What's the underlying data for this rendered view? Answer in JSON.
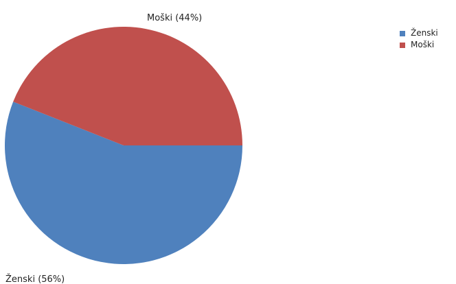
{
  "chart_data": {
    "type": "pie",
    "slices": [
      {
        "label": "Ženski",
        "value": 56,
        "color": "#4f81bd",
        "data_label": "Ženski (56%)"
      },
      {
        "label": "Moški",
        "value": 44,
        "color": "#c0504d",
        "data_label": "Moški (44%)"
      }
    ],
    "legend": {
      "position": "top-right",
      "entries": [
        "Ženski",
        "Moški"
      ]
    }
  }
}
